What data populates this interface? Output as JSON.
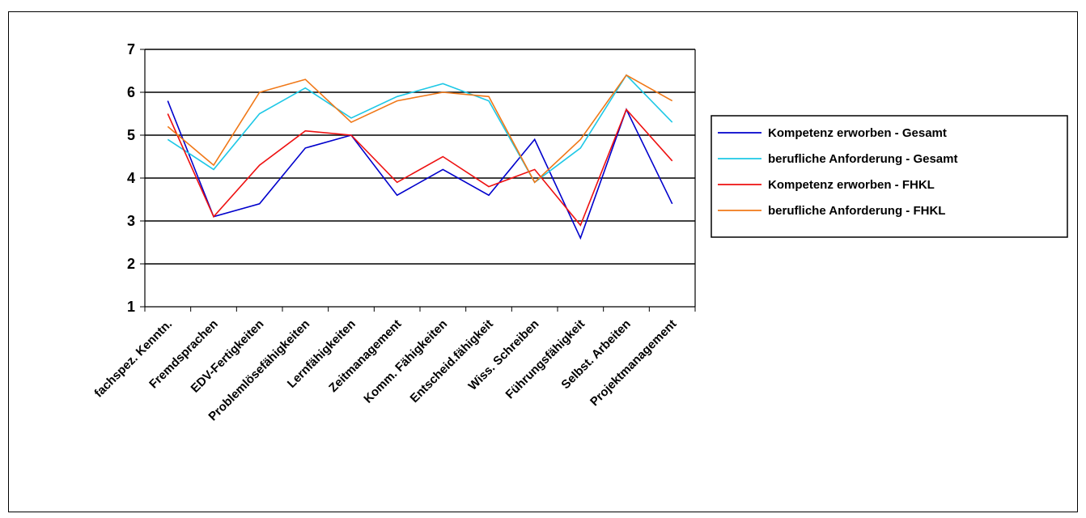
{
  "chart_data": {
    "type": "line",
    "categories": [
      "fachspez. Kenntn.",
      "Fremdsprachen",
      "EDV-Fertigkeiten",
      "Problemlösefähigkeiten",
      "Lernfähigkeiten",
      "Zeitmanagement",
      "Komm. Fähigkeiten",
      "Entscheid.fähigkeit",
      "Wiss. Schreiben",
      "Führungsfähigkeit",
      "Selbst. Arbeiten",
      "Projektmanagement"
    ],
    "series": [
      {
        "name": "Kompetenz erworben - Gesamt",
        "color": "#0000cc",
        "values": [
          5.8,
          3.1,
          3.4,
          4.7,
          5.0,
          3.6,
          4.2,
          3.6,
          4.9,
          2.6,
          5.6,
          3.4
        ]
      },
      {
        "name": "berufliche Anforderung - Gesamt",
        "color": "#1ec8e6",
        "values": [
          4.9,
          4.2,
          5.5,
          6.1,
          5.4,
          5.9,
          6.2,
          5.8,
          3.9,
          4.7,
          6.4,
          5.3
        ]
      },
      {
        "name": "Kompetenz erworben - FHKL",
        "color": "#ee1111",
        "values": [
          5.5,
          3.1,
          4.3,
          5.1,
          5.0,
          3.9,
          4.5,
          3.8,
          4.2,
          2.9,
          5.6,
          4.4
        ]
      },
      {
        "name": "berufliche Anforderung - FHKL",
        "color": "#f07818",
        "values": [
          5.2,
          4.3,
          6.0,
          6.3,
          5.3,
          5.8,
          6.0,
          5.9,
          3.9,
          4.9,
          6.4,
          5.8
        ]
      }
    ],
    "yticks": [
      1,
      2,
      3,
      4,
      5,
      6,
      7
    ],
    "ylim": [
      1,
      7
    ],
    "grid": true,
    "legend": "right"
  }
}
